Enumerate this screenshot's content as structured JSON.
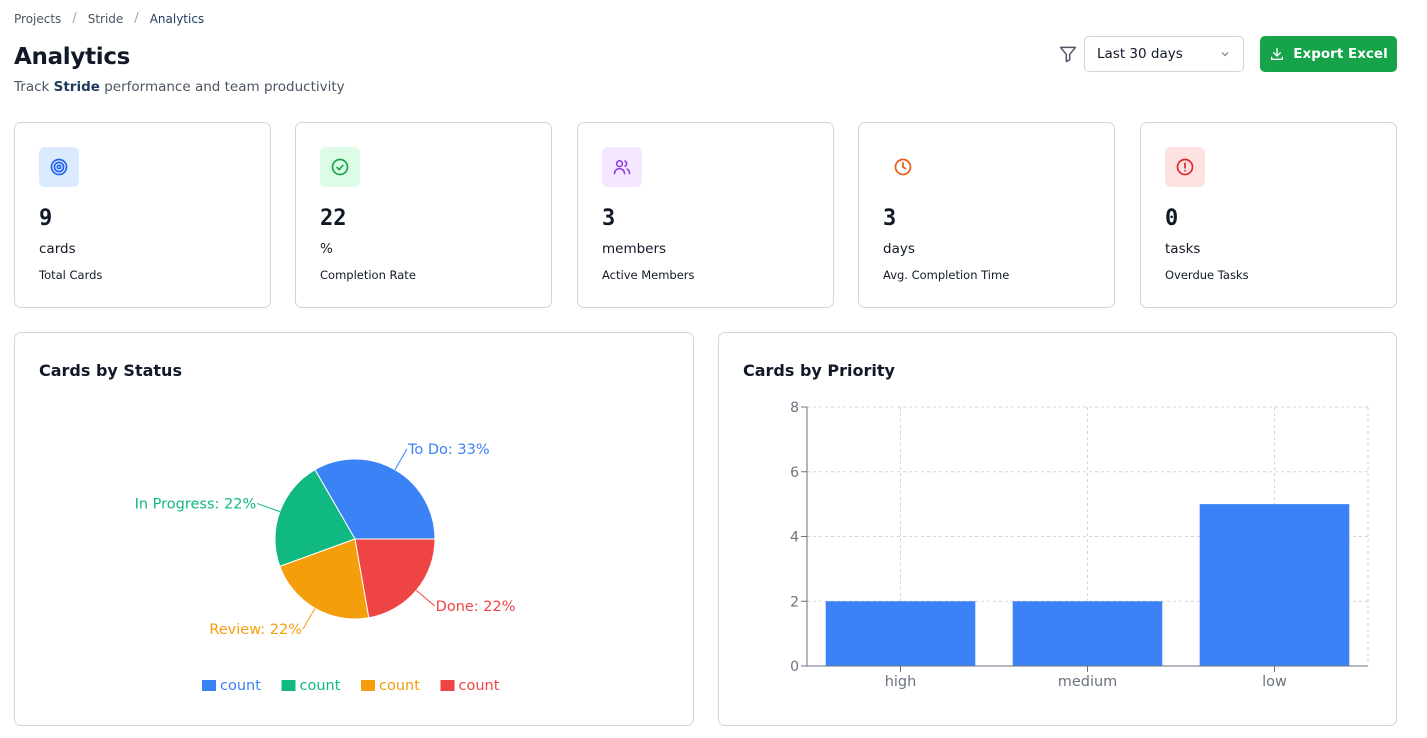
{
  "breadcrumb": {
    "items": [
      "Projects",
      "Stride",
      "Analytics"
    ]
  },
  "header": {
    "title": "Analytics",
    "subtitle_prefix": "Track ",
    "subtitle_project": "Stride",
    "subtitle_suffix": " performance and team productivity"
  },
  "toolbar": {
    "range_value": "Last 30 days",
    "export_label": "Export Excel"
  },
  "stats": [
    {
      "value": "9",
      "unit": "cards",
      "label": "Total Cards",
      "icon": "target-icon",
      "color": "#2563eb",
      "bg": "#dbeafe"
    },
    {
      "value": "22",
      "unit": "%",
      "label": "Completion Rate",
      "icon": "check-circle-icon",
      "color": "#16a34a",
      "bg": "#dcfce7"
    },
    {
      "value": "3",
      "unit": "members",
      "label": "Active Members",
      "icon": "users-icon",
      "color": "#9333ea",
      "bg": "#f3e8ff"
    },
    {
      "value": "3",
      "unit": "days",
      "label": "Avg. Completion Time",
      "icon": "clock-icon",
      "color": "#ea580c",
      "bg": "#ffffff"
    },
    {
      "value": "0",
      "unit": "tasks",
      "label": "Overdue Tasks",
      "icon": "alert-circle-icon",
      "color": "#dc2626",
      "bg": "#fee2e2"
    }
  ],
  "status_panel": {
    "title": "Cards by Status"
  },
  "priority_panel": {
    "title": "Cards by Priority"
  },
  "chart_data": [
    {
      "type": "pie",
      "title": "Cards by Status",
      "categories": [
        "To Do",
        "In Progress",
        "Review",
        "Done"
      ],
      "values": [
        3,
        2,
        2,
        2
      ],
      "percent_labels": [
        "To Do: 33%",
        "In Progress: 22%",
        "Review: 22%",
        "Done: 22%"
      ],
      "colors": [
        "#3b82f6",
        "#10b981",
        "#f59e0b",
        "#ef4444"
      ],
      "legend": [
        "count",
        "count",
        "count",
        "count"
      ],
      "legend_position": "bottom"
    },
    {
      "type": "bar",
      "title": "Cards by Priority",
      "categories": [
        "high",
        "medium",
        "low"
      ],
      "values": [
        2,
        2,
        5
      ],
      "ylim": [
        0,
        8
      ],
      "yticks": [
        "0",
        "2",
        "4",
        "6",
        "8"
      ],
      "color": "#3b82f6",
      "grid": true
    }
  ]
}
